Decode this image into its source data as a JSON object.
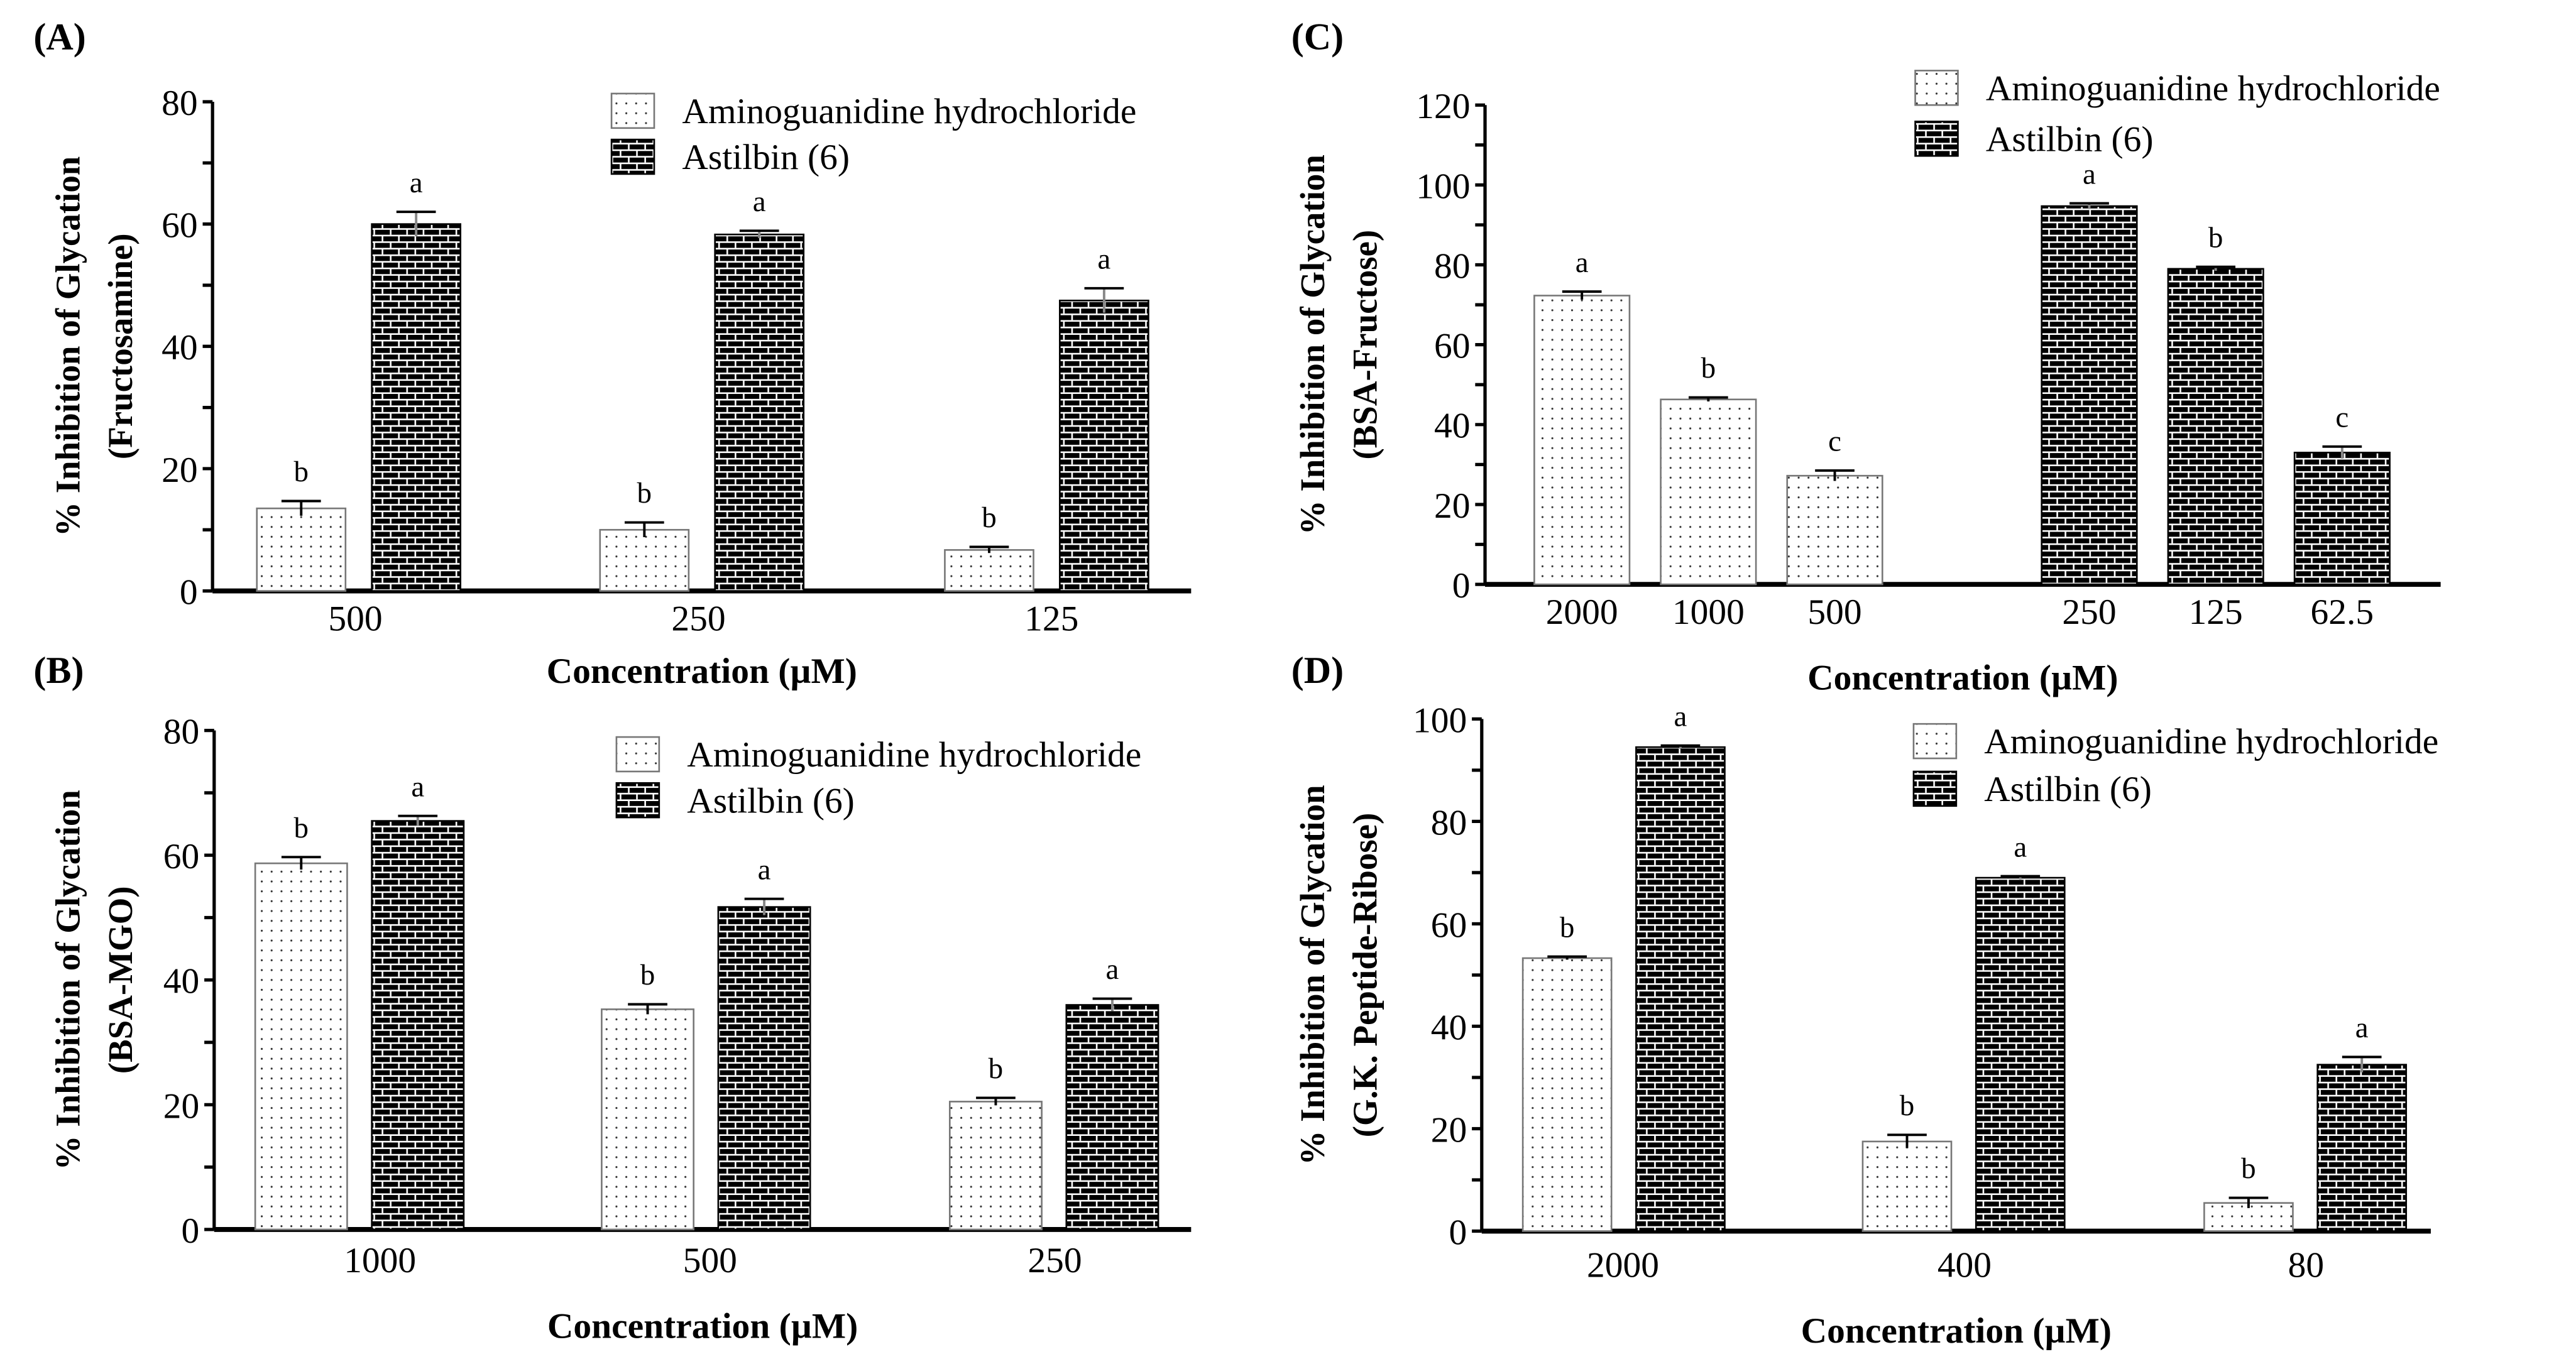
{
  "legend": {
    "series_a": "Aminoguanidine hydrochloride",
    "series_b": "Astilbin (6)"
  },
  "colors": {
    "astilbin": "#000000",
    "aminoguanidine": "#ffffff"
  },
  "chart_data": [
    {
      "panel": "(A)",
      "type": "bar",
      "ylabel": [
        "% Inhibition of Glycation",
        "(Fructosamine)"
      ],
      "xlabel": "Concentration (µM)",
      "ylim": [
        0,
        80
      ],
      "yticks": [
        0,
        20,
        40,
        60,
        80
      ],
      "layout": "grouped",
      "categories": [
        "500",
        "250",
        "125"
      ],
      "series": [
        {
          "name": "Aminoguanidine hydrochloride",
          "values": [
            13.5,
            10.0,
            6.7
          ],
          "errors": [
            1.2,
            1.2,
            0.5
          ],
          "letters": [
            "b",
            "b",
            "b"
          ]
        },
        {
          "name": "Astilbin (6)",
          "values": [
            60.0,
            58.3,
            47.5
          ],
          "errors": [
            2.0,
            0.6,
            2.0
          ],
          "letters": [
            "a",
            "a",
            "a"
          ]
        }
      ]
    },
    {
      "panel": "(B)",
      "type": "bar",
      "ylabel": [
        "% Inhibition of Glycation",
        "(BSA-MGO)"
      ],
      "xlabel": "Concentration (µM)",
      "ylim": [
        0,
        80
      ],
      "yticks": [
        0,
        20,
        40,
        60,
        80
      ],
      "layout": "grouped",
      "categories": [
        "1000",
        "500",
        "250"
      ],
      "series": [
        {
          "name": "Aminoguanidine hydrochloride",
          "values": [
            58.7,
            35.3,
            20.5
          ],
          "errors": [
            1.0,
            0.8,
            0.6
          ],
          "letters": [
            "b",
            "b",
            "b"
          ]
        },
        {
          "name": "Astilbin (6)",
          "values": [
            65.5,
            51.7,
            36.0
          ],
          "errors": [
            0.8,
            1.3,
            1.0
          ],
          "letters": [
            "a",
            "a",
            "a"
          ]
        }
      ]
    },
    {
      "panel": "(C)",
      "type": "bar",
      "ylabel": [
        "% Inhibition of Glycation",
        "(BSA-Fructose)"
      ],
      "xlabel": "Concentration (µM)",
      "ylim": [
        0,
        120
      ],
      "yticks": [
        0,
        20,
        40,
        60,
        80,
        100,
        120
      ],
      "layout": "separate",
      "series": [
        {
          "name": "Aminoguanidine hydrochloride",
          "categories": [
            "2000",
            "1000",
            "500"
          ],
          "values": [
            72.3,
            46.3,
            27.2
          ],
          "errors": [
            1.0,
            0.5,
            1.3
          ],
          "letters": [
            "a",
            "b",
            "c"
          ]
        },
        {
          "name": "Astilbin (6)",
          "categories": [
            "250",
            "125",
            "62.5"
          ],
          "values": [
            94.7,
            79.0,
            33.0
          ],
          "errors": [
            0.7,
            0.5,
            1.5
          ],
          "letters": [
            "a",
            "b",
            "c"
          ]
        }
      ]
    },
    {
      "panel": "(D)",
      "type": "bar",
      "ylabel": [
        "% Inhibition of Glycation",
        "(G.K. Peptide-Ribose)"
      ],
      "xlabel": "Concentration (µM)",
      "ylim": [
        0,
        100
      ],
      "yticks": [
        0,
        20,
        40,
        60,
        80,
        100
      ],
      "layout": "grouped",
      "categories": [
        "2000",
        "400",
        "80"
      ],
      "series": [
        {
          "name": "Aminoguanidine hydrochloride",
          "values": [
            53.3,
            17.5,
            5.5
          ],
          "errors": [
            0.3,
            1.3,
            1.0
          ],
          "letters": [
            "b",
            "b",
            "b"
          ]
        },
        {
          "name": "Astilbin (6)",
          "values": [
            94.5,
            69.0,
            32.5
          ],
          "errors": [
            0.3,
            0.3,
            1.5
          ],
          "letters": [
            "a",
            "a",
            "a"
          ]
        }
      ]
    }
  ]
}
